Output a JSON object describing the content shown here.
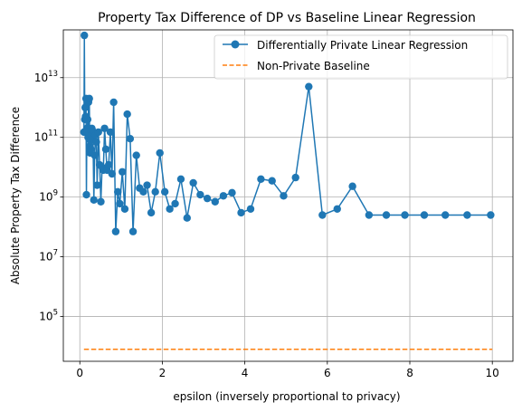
{
  "chart_data": {
    "type": "line",
    "title": "Property Tax Difference of DP vs Baseline Linear Regression",
    "xlabel": "epsilon (inversely proportional to privacy)",
    "ylabel": "Absolute Property Tax Difference",
    "xlim": [
      -0.4,
      10.5
    ],
    "ylim_log10": [
      3.5,
      14.6
    ],
    "yscale": "log",
    "grid": true,
    "legend_position": "top-right",
    "x_ticks": [
      {
        "value": 0,
        "label": "0"
      },
      {
        "value": 2,
        "label": "2"
      },
      {
        "value": 4,
        "label": "4"
      },
      {
        "value": 6,
        "label": "6"
      },
      {
        "value": 8,
        "label": "8"
      },
      {
        "value": 10,
        "label": "10"
      }
    ],
    "y_ticks": [
      {
        "exp": 5,
        "base": "10",
        "power": "5"
      },
      {
        "exp": 7,
        "base": "10",
        "power": "7"
      },
      {
        "exp": 9,
        "base": "10",
        "power": "9"
      },
      {
        "exp": 11,
        "base": "10",
        "power": "11"
      },
      {
        "exp": 13,
        "base": "10",
        "power": "13"
      }
    ],
    "series": [
      {
        "name": "Differentially Private Linear Regression",
        "color": "#1f77b4",
        "style": "line-marker",
        "x": [
          0.1,
          0.11,
          0.12,
          0.13,
          0.14,
          0.15,
          0.16,
          0.17,
          0.18,
          0.19,
          0.2,
          0.21,
          0.22,
          0.23,
          0.24,
          0.25,
          0.26,
          0.27,
          0.28,
          0.29,
          0.3,
          0.32,
          0.34,
          0.36,
          0.38,
          0.4,
          0.42,
          0.45,
          0.48,
          0.51,
          0.54,
          0.57,
          0.6,
          0.63,
          0.66,
          0.7,
          0.74,
          0.78,
          0.82,
          0.87,
          0.92,
          0.97,
          1.03,
          1.09,
          1.15,
          1.22,
          1.29,
          1.37,
          1.45,
          1.54,
          1.63,
          1.73,
          1.83,
          1.94,
          2.06,
          2.18,
          2.31,
          2.45,
          2.6,
          2.75,
          2.92,
          3.09,
          3.28,
          3.48,
          3.69,
          3.91,
          4.14,
          4.39,
          4.66,
          4.94,
          5.23,
          5.55,
          5.88,
          6.24,
          6.61,
          7.01,
          7.43,
          7.88,
          8.35,
          8.86,
          9.39,
          9.96
        ],
        "y": [
          150000000000.0,
          260000000000000.0,
          400000000000.0,
          1000000000000.0,
          500000000000.0,
          2000000000000.0,
          1200000000.0,
          200000000000.0,
          150000000000.0,
          400000000000.0,
          100000000000.0,
          1500000000000.0,
          120000000000.0,
          2000000000000.0,
          50000000000.0,
          30000000000.0,
          80000000000.0,
          40000000000.0,
          120000000000.0,
          200000000000.0,
          180000000000.0,
          90000000000.0,
          800000000.0,
          25000000000.0,
          120000000000.0,
          70000000000.0,
          2500000000.0,
          150000000000.0,
          12000000000.0,
          700000000.0,
          10000000000.0,
          8000000000.0,
          200000000000.0,
          40000000000.0,
          8000000000.0,
          12000000000.0,
          150000000000.0,
          6000000000.0,
          1500000000000.0,
          70000000.0,
          1500000000.0,
          600000000.0,
          7000000000.0,
          400000000.0,
          600000000000.0,
          90000000000.0,
          70000000.0,
          25000000000.0,
          2000000000.0,
          1500000000.0,
          2500000000.0,
          300000000.0,
          1500000000.0,
          30000000000.0,
          1500000000.0,
          400000000.0,
          600000000.0,
          4000000000.0,
          200000000.0,
          3000000000.0,
          1200000000.0,
          900000000.0,
          700000000.0,
          1100000000.0,
          1400000000.0,
          300000000.0,
          400000000.0,
          4000000000.0,
          3500000000.0,
          1100000000.0,
          4500000000.0,
          5000000000000.0,
          250000000.0,
          400000000.0,
          2300000000.0,
          250000000.0,
          250000000.0,
          250000000.0,
          250000000.0,
          250000000.0,
          250000000.0,
          250000000.0
        ]
      },
      {
        "name": "Non-Private Baseline",
        "color": "#ff7f0e",
        "style": "dashed",
        "x": [
          0.1,
          10
        ],
        "y": [
          8000,
          8000
        ]
      }
    ]
  }
}
